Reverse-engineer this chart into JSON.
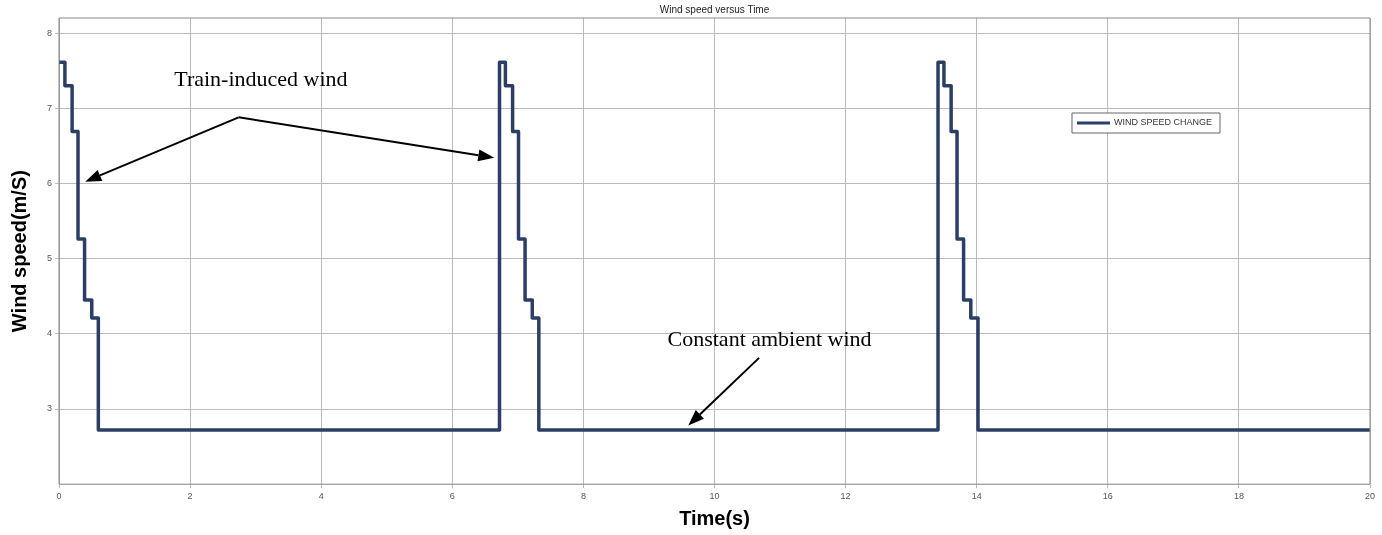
{
  "chart_data": {
    "type": "step",
    "title": "Wind speed versus Time",
    "xlabel": "Time(s)",
    "ylabel": "Wind speed(m/S)",
    "series": [
      {
        "name": "WIND SPEED CHANGE",
        "color": "#2b3f66",
        "x": [
          0,
          0.09,
          0.2,
          0.29,
          0.39,
          0.5,
          0.6,
          6.72,
          6.81,
          6.92,
          7.01,
          7.11,
          7.22,
          7.32,
          13.41,
          13.5,
          13.61,
          13.7,
          13.8,
          13.91,
          14.02,
          20
        ],
        "values": [
          7.61,
          7.3,
          6.69,
          5.26,
          4.45,
          4.21,
          2.72,
          7.61,
          7.3,
          6.69,
          5.26,
          4.45,
          4.21,
          2.72,
          7.61,
          7.3,
          6.69,
          5.26,
          4.45,
          4.21,
          2.72,
          2.72
        ]
      }
    ],
    "xlim": [
      0,
      20
    ],
    "xticks": [
      0,
      2,
      4,
      6,
      8,
      10,
      12,
      14,
      16,
      18,
      20
    ],
    "ylim": [
      2,
      8.2
    ],
    "yticks": [
      3,
      4,
      5,
      6,
      7,
      8
    ],
    "grid": true,
    "legend": "top right",
    "line_style": "solid",
    "marker": "none",
    "annotations": [
      "Train-induced wind",
      "Constant ambient wind"
    ]
  }
}
